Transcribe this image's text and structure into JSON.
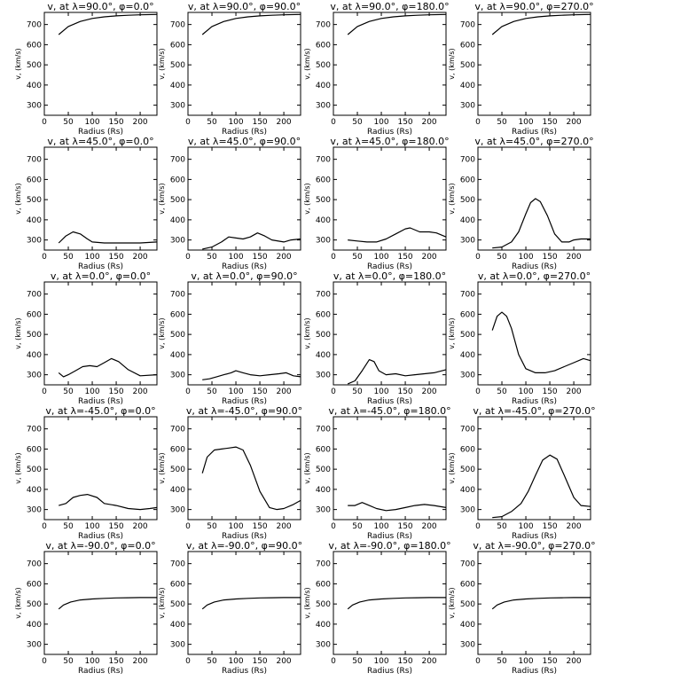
{
  "figure": {
    "xlabel": "Radius (Rs)",
    "ylabel": "v<sub>r</sub> (km/s)",
    "xticks": [
      "0",
      "50",
      "100",
      "150",
      "200"
    ],
    "yticks": [
      "300",
      "400",
      "500",
      "600",
      "700"
    ]
  },
  "chart_data": [
    {
      "type": "line",
      "title": "v, at λ=90.0°, φ=0.0°",
      "xlabel": "Radius (Rs)",
      "ylabel": "v, (km/s)",
      "xlim": [
        0,
        235
      ],
      "ylim": [
        250,
        760
      ],
      "x": [
        30,
        50,
        75,
        100,
        125,
        150,
        175,
        200,
        235
      ],
      "y": [
        650,
        690,
        715,
        730,
        738,
        743,
        746,
        748,
        750
      ]
    },
    {
      "type": "line",
      "title": "v, at λ=90.0°, φ=90.0°",
      "xlabel": "Radius (Rs)",
      "ylabel": "v, (km/s)",
      "xlim": [
        0,
        235
      ],
      "ylim": [
        250,
        760
      ],
      "x": [
        30,
        50,
        75,
        100,
        125,
        150,
        175,
        200,
        235
      ],
      "y": [
        650,
        690,
        715,
        730,
        738,
        743,
        746,
        748,
        750
      ]
    },
    {
      "type": "line",
      "title": "v, at λ=90.0°, φ=180.0°",
      "xlabel": "Radius (Rs)",
      "ylabel": "v, (km/s)",
      "xlim": [
        0,
        235
      ],
      "ylim": [
        250,
        760
      ],
      "x": [
        30,
        50,
        75,
        100,
        125,
        150,
        175,
        200,
        235
      ],
      "y": [
        650,
        690,
        715,
        730,
        738,
        743,
        746,
        748,
        750
      ]
    },
    {
      "type": "line",
      "title": "v, at λ=90.0°, φ=270.0°",
      "xlabel": "Radius (Rs)",
      "ylabel": "v, (km/s)",
      "xlim": [
        0,
        235
      ],
      "ylim": [
        250,
        760
      ],
      "x": [
        30,
        50,
        75,
        100,
        125,
        150,
        175,
        200,
        235
      ],
      "y": [
        650,
        690,
        715,
        730,
        738,
        743,
        746,
        748,
        750
      ]
    },
    {
      "type": "line",
      "title": "v, at λ=45.0°, φ=0.0°",
      "xlabel": "Radius (Rs)",
      "ylabel": "v, (km/s)",
      "xlim": [
        0,
        235
      ],
      "ylim": [
        250,
        760
      ],
      "x": [
        30,
        45,
        60,
        75,
        90,
        100,
        125,
        150,
        175,
        200,
        235
      ],
      "y": [
        285,
        320,
        340,
        330,
        305,
        290,
        285,
        285,
        285,
        285,
        290
      ]
    },
    {
      "type": "line",
      "title": "v, at λ=45.0°, φ=90.0°",
      "xlabel": "Radius (Rs)",
      "ylabel": "v, (km/s)",
      "xlim": [
        0,
        235
      ],
      "ylim": [
        250,
        760
      ],
      "x": [
        30,
        50,
        70,
        85,
        100,
        115,
        130,
        145,
        160,
        175,
        200,
        215,
        235
      ],
      "y": [
        255,
        265,
        290,
        315,
        310,
        305,
        315,
        335,
        320,
        300,
        290,
        300,
        305
      ]
    },
    {
      "type": "line",
      "title": "v, at λ=45.0°, φ=180.0°",
      "xlabel": "Radius (Rs)",
      "ylabel": "v, (km/s)",
      "xlim": [
        0,
        235
      ],
      "ylim": [
        250,
        760
      ],
      "x": [
        30,
        50,
        70,
        90,
        110,
        130,
        150,
        160,
        180,
        200,
        215,
        235
      ],
      "y": [
        300,
        295,
        290,
        290,
        305,
        330,
        355,
        360,
        340,
        340,
        335,
        315
      ]
    },
    {
      "type": "line",
      "title": "v, at λ=45.0°, φ=270.0°",
      "xlabel": "Radius (Rs)",
      "ylabel": "v, (km/s)",
      "xlim": [
        0,
        235
      ],
      "ylim": [
        250,
        760
      ],
      "x": [
        30,
        50,
        70,
        85,
        100,
        110,
        120,
        130,
        145,
        160,
        175,
        190,
        200,
        215,
        235
      ],
      "y": [
        260,
        265,
        290,
        340,
        430,
        485,
        505,
        490,
        420,
        330,
        290,
        290,
        300,
        305,
        305
      ]
    },
    {
      "type": "line",
      "title": "v, at λ=0.0°, φ=0.0°",
      "xlabel": "Radius (Rs)",
      "ylabel": "v, (km/s)",
      "xlim": [
        0,
        235
      ],
      "ylim": [
        250,
        760
      ],
      "x": [
        30,
        40,
        50,
        65,
        80,
        95,
        110,
        125,
        140,
        155,
        175,
        200,
        235
      ],
      "y": [
        310,
        290,
        300,
        320,
        340,
        345,
        340,
        360,
        380,
        365,
        325,
        295,
        300
      ]
    },
    {
      "type": "line",
      "title": "v, at λ=0.0°, φ=90.0°",
      "xlabel": "Radius (Rs)",
      "ylabel": "v, (km/s)",
      "xlim": [
        0,
        235
      ],
      "ylim": [
        250,
        760
      ],
      "x": [
        30,
        45,
        60,
        75,
        90,
        100,
        115,
        130,
        150,
        170,
        190,
        205,
        220,
        235
      ],
      "y": [
        275,
        280,
        290,
        300,
        310,
        320,
        310,
        300,
        295,
        300,
        305,
        310,
        295,
        290
      ]
    },
    {
      "type": "line",
      "title": "v, at λ=0.0°, φ=180.0°",
      "xlabel": "Radius (Rs)",
      "ylabel": "v, (km/s)",
      "xlim": [
        0,
        235
      ],
      "ylim": [
        250,
        760
      ],
      "x": [
        30,
        45,
        60,
        75,
        85,
        95,
        110,
        130,
        150,
        170,
        190,
        210,
        235
      ],
      "y": [
        255,
        270,
        320,
        375,
        365,
        320,
        300,
        305,
        295,
        300,
        305,
        310,
        325
      ]
    },
    {
      "type": "line",
      "title": "v, at λ=0.0°, φ=270.0°",
      "xlabel": "Radius (Rs)",
      "ylabel": "v, (km/s)",
      "xlim": [
        0,
        235
      ],
      "ylim": [
        250,
        760
      ],
      "x": [
        30,
        40,
        50,
        60,
        70,
        85,
        100,
        120,
        140,
        160,
        180,
        200,
        220,
        235
      ],
      "y": [
        520,
        590,
        610,
        590,
        530,
        400,
        330,
        310,
        310,
        320,
        340,
        360,
        380,
        370
      ]
    },
    {
      "type": "line",
      "title": "v, at λ=-45.0°, φ=0.0°",
      "xlabel": "Radius (Rs)",
      "ylabel": "v, (km/s)",
      "xlim": [
        0,
        235
      ],
      "ylim": [
        250,
        760
      ],
      "x": [
        30,
        45,
        60,
        75,
        90,
        110,
        125,
        150,
        175,
        200,
        220,
        235
      ],
      "y": [
        320,
        330,
        360,
        370,
        375,
        360,
        330,
        320,
        305,
        300,
        305,
        310
      ]
    },
    {
      "type": "line",
      "title": "v, at λ=-45.0°, φ=90.0°",
      "xlabel": "Radius (Rs)",
      "ylabel": "v, (km/s)",
      "xlim": [
        0,
        235
      ],
      "ylim": [
        250,
        760
      ],
      "x": [
        30,
        40,
        55,
        70,
        85,
        100,
        115,
        130,
        150,
        170,
        185,
        200,
        220,
        235
      ],
      "y": [
        480,
        560,
        595,
        600,
        605,
        610,
        595,
        520,
        390,
        310,
        300,
        305,
        325,
        345
      ]
    },
    {
      "type": "line",
      "title": "v, at λ=-45.0°, φ=180.0°",
      "xlabel": "Radius (Rs)",
      "ylabel": "v, (km/s)",
      "xlim": [
        0,
        235
      ],
      "ylim": [
        250,
        760
      ],
      "x": [
        30,
        45,
        60,
        75,
        90,
        110,
        130,
        150,
        170,
        190,
        210,
        235
      ],
      "y": [
        320,
        320,
        335,
        320,
        305,
        295,
        300,
        310,
        320,
        325,
        320,
        310
      ]
    },
    {
      "type": "line",
      "title": "v, at λ=-45.0°, φ=270.0°",
      "xlabel": "Radius (Rs)",
      "ylabel": "v, (km/s)",
      "xlim": [
        0,
        235
      ],
      "ylim": [
        250,
        760
      ],
      "x": [
        30,
        50,
        70,
        90,
        105,
        120,
        135,
        150,
        165,
        180,
        200,
        215,
        235
      ],
      "y": [
        260,
        265,
        290,
        330,
        390,
        470,
        545,
        570,
        550,
        470,
        360,
        320,
        315
      ]
    },
    {
      "type": "line",
      "title": "v, at λ=-90.0°, φ=0.0°",
      "xlabel": "Radius (Rs)",
      "ylabel": "v, (km/s)",
      "xlim": [
        0,
        235
      ],
      "ylim": [
        250,
        760
      ],
      "x": [
        30,
        40,
        55,
        75,
        100,
        125,
        150,
        175,
        200,
        235
      ],
      "y": [
        475,
        495,
        510,
        520,
        525,
        528,
        530,
        531,
        532,
        532
      ]
    },
    {
      "type": "line",
      "title": "v, at λ=-90.0°, φ=90.0°",
      "xlabel": "Radius (Rs)",
      "ylabel": "v, (km/s)",
      "xlim": [
        0,
        235
      ],
      "ylim": [
        250,
        760
      ],
      "x": [
        30,
        40,
        55,
        75,
        100,
        125,
        150,
        175,
        200,
        235
      ],
      "y": [
        475,
        495,
        510,
        520,
        525,
        528,
        530,
        531,
        532,
        532
      ]
    },
    {
      "type": "line",
      "title": "v, at λ=-90.0°, φ=180.0°",
      "xlabel": "Radius (Rs)",
      "ylabel": "v, (km/s)",
      "xlim": [
        0,
        235
      ],
      "ylim": [
        250,
        760
      ],
      "x": [
        30,
        40,
        55,
        75,
        100,
        125,
        150,
        175,
        200,
        235
      ],
      "y": [
        475,
        495,
        510,
        520,
        525,
        528,
        530,
        531,
        532,
        532
      ]
    },
    {
      "type": "line",
      "title": "v, at λ=-90.0°, φ=270.0°",
      "xlabel": "Radius (Rs)",
      "ylabel": "v, (km/s)",
      "xlim": [
        0,
        235
      ],
      "ylim": [
        250,
        760
      ],
      "x": [
        30,
        40,
        55,
        75,
        100,
        125,
        150,
        175,
        200,
        235
      ],
      "y": [
        475,
        495,
        510,
        520,
        525,
        528,
        530,
        531,
        532,
        532
      ]
    }
  ]
}
